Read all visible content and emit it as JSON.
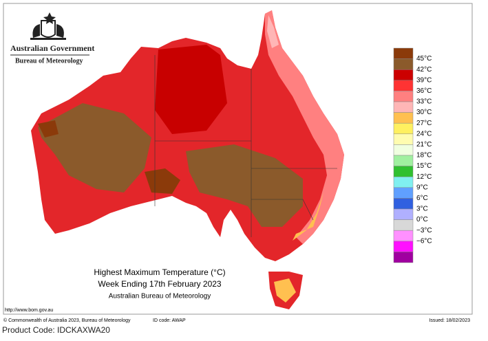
{
  "header": {
    "agency": "Australian Government",
    "bureau": "Bureau of Meteorology"
  },
  "legend": {
    "labels": [
      "45°C",
      "42°C",
      "39°C",
      "36°C",
      "33°C",
      "30°C",
      "27°C",
      "24°C",
      "21°C",
      "18°C",
      "15°C",
      "12°C",
      "9°C",
      "6°C",
      "3°C",
      "0°C",
      "−3°C",
      "−6°C"
    ],
    "colors": [
      "#8b3a0a",
      "#8b5a2b",
      "#cc0000",
      "#ff3333",
      "#ff8080",
      "#ffb6b6",
      "#ffc050",
      "#fff060",
      "#fffcb0",
      "#f0ffe0",
      "#a0f0a0",
      "#30c030",
      "#80f0f0",
      "#60a0ff",
      "#3060e0",
      "#b0b0ff",
      "#d8d8d8",
      "#ff90ff",
      "#ff10ff",
      "#a000a0"
    ]
  },
  "map_title": {
    "line1": "Highest Maximum Temperature (°C)",
    "line2": "Week Ending 17th February 2023",
    "line3": "Australian Bureau of Meteorology"
  },
  "url": "http://www.bom.gov.au",
  "footer": {
    "copyright": "© Commonwealth of Australia 2023, Bureau of Meteorology",
    "id_code": "ID code: AWAP",
    "issued": "Issued: 18/02/2023",
    "product_code": "Product Code: IDCKAXWA20"
  }
}
